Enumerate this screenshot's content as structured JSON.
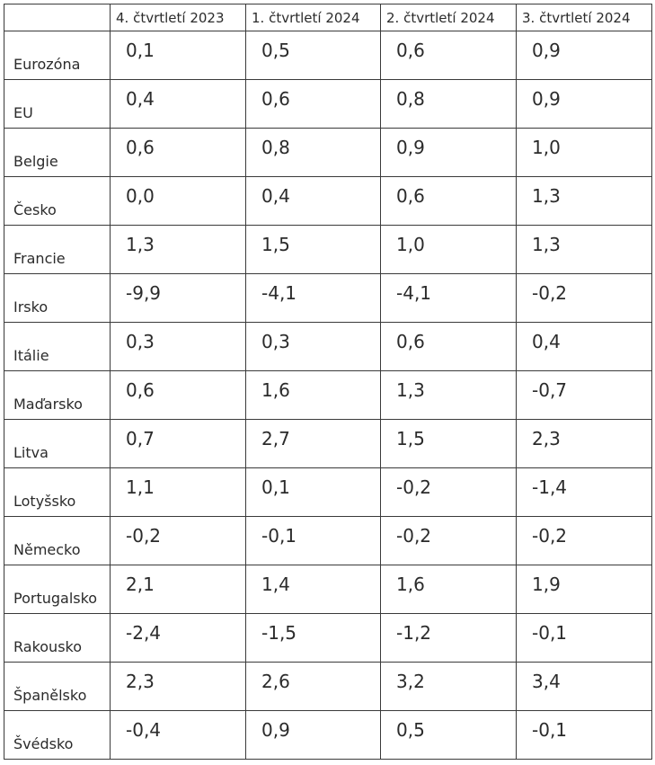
{
  "table": {
    "header": [
      "",
      "4. čtvrtletí 2023",
      "1. čtvrtletí 2024",
      "2. čtvrtletí 2024",
      "3. čtvrtletí 2024"
    ],
    "rows": [
      {
        "country": "Eurozóna",
        "values": [
          "0,1",
          "0,5",
          "0,6",
          "0,9"
        ]
      },
      {
        "country": "EU",
        "values": [
          "0,4",
          "0,6",
          "0,8",
          "0,9"
        ]
      },
      {
        "country": "Belgie",
        "values": [
          "0,6",
          "0,8",
          "0,9",
          "1,0"
        ]
      },
      {
        "country": "Česko",
        "values": [
          "0,0",
          "0,4",
          "0,6",
          "1,3"
        ]
      },
      {
        "country": "Francie",
        "values": [
          "1,3",
          "1,5",
          "1,0",
          "1,3"
        ]
      },
      {
        "country": "Irsko",
        "values": [
          "-9,9",
          "-4,1",
          "-4,1",
          "-0,2"
        ]
      },
      {
        "country": "Itálie",
        "values": [
          "0,3",
          "0,3",
          "0,6",
          "0,4"
        ]
      },
      {
        "country": "Maďarsko",
        "values": [
          "0,6",
          "1,6",
          "1,3",
          "-0,7"
        ]
      },
      {
        "country": "Litva",
        "values": [
          "0,7",
          "2,7",
          "1,5",
          "2,3"
        ]
      },
      {
        "country": "Lotyšsko",
        "values": [
          "1,1",
          "0,1",
          "-0,2",
          "-1,4"
        ]
      },
      {
        "country": "Německo",
        "values": [
          "-0,2",
          "-0,1",
          "-0,2",
          "-0,2"
        ]
      },
      {
        "country": "Portugalsko",
        "values": [
          "2,1",
          "1,4",
          "1,6",
          "1,9"
        ]
      },
      {
        "country": "Rakousko",
        "values": [
          "-2,4",
          "-1,5",
          "-1,2",
          "-0,1"
        ]
      },
      {
        "country": "Španělsko",
        "values": [
          "2,3",
          "2,6",
          "3,2",
          "3,4"
        ]
      },
      {
        "country": "Švédsko",
        "values": [
          "-0,4",
          "0,9",
          "0,5",
          "-0,1"
        ]
      }
    ]
  }
}
